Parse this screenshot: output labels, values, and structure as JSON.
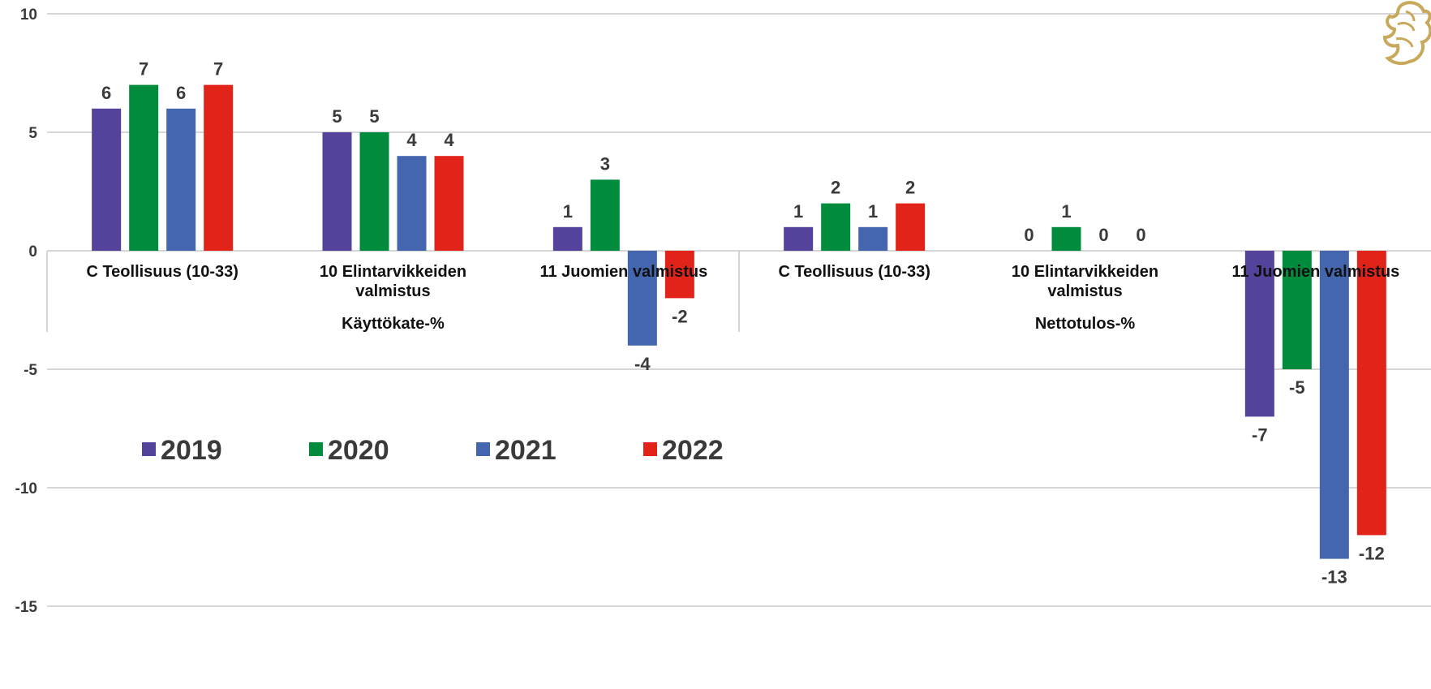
{
  "chart_data": {
    "type": "bar",
    "ylim": [
      -15,
      10
    ],
    "yticks": [
      "10",
      "5",
      "0",
      "-5",
      "-10",
      "-15"
    ],
    "grid": true,
    "legend_position": "lower-left",
    "groups": [
      {
        "label": "Käyttökate-%",
        "categories": [
          {
            "lines": [
              "C Teollisuus (10-33)"
            ]
          },
          {
            "lines": [
              "10 Elintarvikkeiden",
              "valmistus"
            ]
          },
          {
            "lines": [
              "11 Juomien valmistus"
            ]
          }
        ]
      },
      {
        "label": "Nettotulos-%",
        "categories": [
          {
            "lines": [
              "C Teollisuus (10-33)"
            ]
          },
          {
            "lines": [
              "10 Elintarvikkeiden",
              "valmistus"
            ]
          },
          {
            "lines": [
              "11 Juomien valmistus"
            ]
          }
        ]
      }
    ],
    "series": [
      {
        "name": "2019",
        "color": "#55429a",
        "values": [
          6,
          5,
          1,
          1,
          0,
          -7
        ],
        "labels": [
          "6",
          "5",
          "1",
          "1",
          "0",
          "-7"
        ]
      },
      {
        "name": "2020",
        "color": "#008c3c",
        "values": [
          7,
          5,
          3,
          2,
          1,
          -5
        ],
        "labels": [
          "7",
          "5",
          "3",
          "2",
          "1",
          "-5"
        ]
      },
      {
        "name": "2021",
        "color": "#4466ae",
        "values": [
          6,
          4,
          -4,
          1,
          0,
          -13
        ],
        "labels": [
          "6",
          "4",
          "-4",
          "1",
          "0",
          "-13"
        ]
      },
      {
        "name": "2022",
        "color": "#e2231a",
        "values": [
          7,
          4,
          -2,
          2,
          0,
          -12
        ],
        "labels": [
          "7",
          "4",
          "-2",
          "2",
          "0",
          "-12"
        ]
      }
    ]
  },
  "logo": {
    "name": "lion-emblem",
    "color": "#c8a85a"
  }
}
